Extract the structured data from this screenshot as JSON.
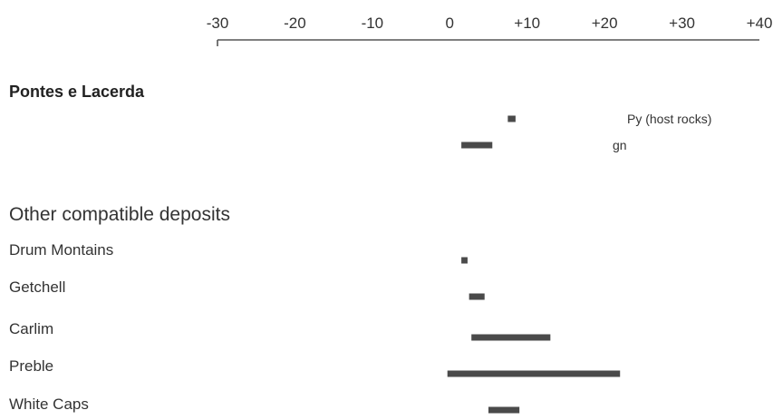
{
  "chart_data": {
    "type": "range-bar",
    "axis": {
      "ticks": [
        -30,
        -20,
        -10,
        0,
        10,
        20,
        30,
        40
      ],
      "tick_labels": [
        "-30",
        "-20",
        "-10",
        "0",
        "+10",
        "+20",
        "+30",
        "+40"
      ],
      "xlim": [
        -30,
        40
      ]
    },
    "groups": [
      {
        "title": "Pontes e Lacerda",
        "rows": [
          {
            "label": "",
            "range": [
              7.5,
              8.5
            ],
            "bar_label": "Py (host rocks)"
          },
          {
            "label": "",
            "range": [
              1.5,
              5.5
            ],
            "bar_label": "gn"
          }
        ]
      },
      {
        "title": "Other compatible deposits",
        "rows": [
          {
            "label": "Drum Montains",
            "range": [
              1.5,
              2.3
            ],
            "bar_label": ""
          },
          {
            "label": "Getchell",
            "range": [
              2.5,
              4.5
            ],
            "bar_label": ""
          },
          {
            "label": "Carlim",
            "range": [
              2.8,
              13
            ],
            "bar_label": ""
          },
          {
            "label": "Preble",
            "range": [
              -0.3,
              22
            ],
            "bar_label": ""
          },
          {
            "label": "White Caps",
            "range": [
              5,
              9
            ],
            "bar_label": ""
          }
        ]
      }
    ],
    "colors": {
      "bar": "#4a4a4a",
      "axis": "#555555",
      "text": "#333333"
    }
  }
}
